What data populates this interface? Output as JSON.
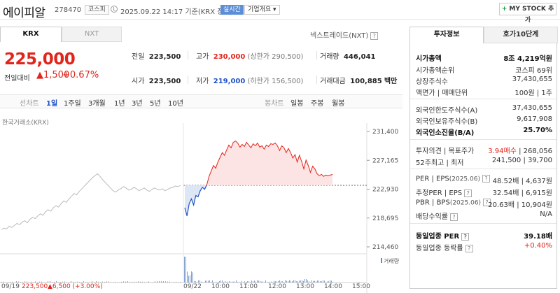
{
  "header": {
    "name": "에이피알",
    "code": "278470",
    "market": "코스피",
    "datetime": "2025.09.22 14:17 기준(KRX 장중)",
    "realtime": "실시간",
    "overview": "기업개요 ▾",
    "mystock_label": "MY STOCK 추가",
    "mystock_plus": "+"
  },
  "market_tabs": {
    "krx": "KRX",
    "nxt": "NXT",
    "nextrade": "넥스트레이드(NXT)"
  },
  "price": {
    "current": "225,000",
    "change_label": "전일대비",
    "change": "▲1,500",
    "change_pct": "+0.67%"
  },
  "quotes": {
    "prev_close_label": "전일",
    "prev_close": "223,500",
    "high_label": "고가",
    "high": "230,000",
    "upper_limit": "(상한가 290,500)",
    "volume_label": "거래량",
    "volume": "446,041",
    "open_label": "시가",
    "open": "223,500",
    "low_label": "저가",
    "low": "219,000",
    "lower_limit": "(하한가 156,500)",
    "amount_label": "거래대금",
    "amount": "100,885",
    "amount_unit": "백만"
  },
  "periods": {
    "line_label": "선차트",
    "line_items": [
      "1일",
      "1주일",
      "3개월",
      "1년",
      "3년",
      "5년",
      "10년"
    ],
    "active": "1일",
    "candle_label": "봉차트",
    "candle_items": [
      "일봉",
      "주봉",
      "월봉"
    ]
  },
  "chart_data": {
    "type": "line",
    "source": "한국거래소(KRX)",
    "y_ticks": [
      "231,400",
      "227,165",
      "222,930",
      "218,695",
      "214,460"
    ],
    "ylim": [
      214460,
      231400
    ],
    "prev_close_line": 223500,
    "x_ticks": [
      "09/19",
      "09/22",
      "10:00",
      "11:00",
      "12:00",
      "13:00",
      "14:00",
      "15:00"
    ],
    "prev_day_summary": {
      "date": "09/19",
      "close": "223,500",
      "change": "▲6,500",
      "change_pct": "(+3.00%)"
    },
    "volume_legend": "거래량",
    "series": [
      {
        "name": "prev_day_09_19",
        "color": "#bbbbbb",
        "values": [
          217000,
          217200,
          217100,
          217500,
          217300,
          217600,
          217900,
          217700,
          218100,
          218300,
          218000,
          218500,
          218800,
          218600,
          219000,
          219300,
          219100,
          219600,
          219900,
          219700,
          220200,
          220500,
          220300,
          220800,
          221200,
          221000,
          221500,
          221900,
          222300,
          222100,
          222600,
          223000,
          223400,
          223800,
          224200,
          224600,
          224900,
          225200,
          224800,
          224300,
          223900,
          223500,
          223100,
          222700,
          222500,
          222800,
          223000,
          223300,
          223100,
          222800,
          222900,
          223200,
          223000,
          222700,
          222900,
          223100,
          222800,
          222600,
          222900,
          223100,
          222900,
          222800,
          223000,
          222700,
          222900,
          223100,
          223200,
          223400,
          223300,
          223500
        ]
      },
      {
        "name": "today_09_22",
        "values": [
          220200,
          219000,
          220800,
          221500,
          220600,
          222000,
          221800,
          222700,
          223200,
          222900,
          223600,
          224800,
          225600,
          226400,
          226000,
          226900,
          227600,
          228300,
          227900,
          228700,
          229400,
          229000,
          229800,
          230000,
          229700,
          229100,
          229500,
          229200,
          229800,
          229400,
          229000,
          229600,
          229300,
          229700,
          229100,
          229300,
          228800,
          229400,
          229200,
          229600,
          229500,
          229700,
          229300,
          228600,
          229300,
          229000,
          228300,
          228900,
          228300,
          227500,
          228000,
          226900,
          227900,
          227000,
          225900,
          227200,
          226400,
          225400,
          226300,
          225900,
          225200,
          224900,
          225100,
          224800,
          225000,
          224900,
          225000,
          225100
        ]
      }
    ]
  },
  "invest": {
    "tab1": "투자정보",
    "tab2": "호가10단계",
    "rows1": [
      {
        "k": "시가총액",
        "v": "8조 4,219억원",
        "bold": true
      },
      {
        "k": "시가총액순위",
        "v": "코스피 69위"
      },
      {
        "k": "상장주식수",
        "v": "37,430,655"
      },
      {
        "k": "액면가 | 매매단위",
        "v": "100원 | 1주"
      }
    ],
    "rows2": [
      {
        "k": "외국인한도주식수(A)",
        "v": "37,430,655"
      },
      {
        "k": "외국인보유주식수(B)",
        "v": "9,617,908"
      },
      {
        "k": "외국인소진율(B/A)",
        "v": "25.70%",
        "bold": true
      }
    ],
    "rows3_k": [
      "투자의견 | 목표주가",
      "52주최고 | 최저"
    ],
    "opinion_buy": "3.94매수",
    "opinion_target": "| 268,056",
    "w52": "241,500 | 39,700",
    "rows4": [
      {
        "k": "PER | EPS",
        "k_note": "(2025.06)",
        "v": "48.52배 | 4,637원"
      },
      {
        "k": "추정PER | EPS",
        "v": "32.54배 | 6,915원"
      },
      {
        "k": "PBR | BPS",
        "k_note": "(2025.06)",
        "v": "20.63배 | 10,904원"
      },
      {
        "k": "배당수익률",
        "v": "N/A"
      }
    ],
    "ind_per_label": "동일업종 PER",
    "ind_per": "39.18배",
    "ind_chg_label": "동일업종 등락률",
    "ind_chg": "+0.40%"
  }
}
